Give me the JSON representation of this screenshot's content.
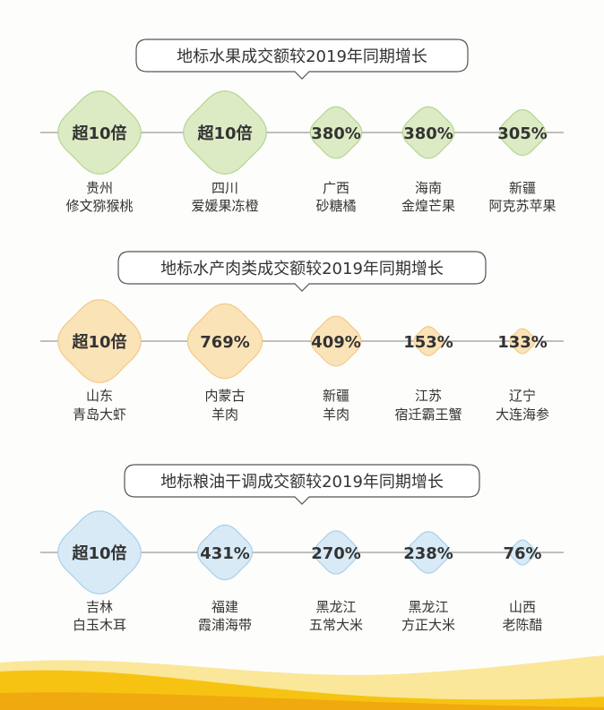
{
  "colors": {
    "fruit_fill": "#dcebc4",
    "fruit_stroke": "#b5d493",
    "aqua_fill": "#fbe3b8",
    "aqua_stroke": "#f2c987",
    "grain_fill": "#d8eaf6",
    "grain_stroke": "#a9cfe9",
    "line": "#9a9a9a",
    "text": "#333333",
    "banner": "#f7c313"
  },
  "chart_data": [
    {
      "type": "bubble",
      "title": "地标水果成交额较2019年同期增长",
      "items": [
        {
          "value_label": "超10倍",
          "region": "贵州",
          "product": "修文猕猴桃",
          "size": 1.0
        },
        {
          "value_label": "超10倍",
          "region": "四川",
          "product": "爱媛果冻橙",
          "size": 1.0
        },
        {
          "value_label": "380%",
          "region": "广西",
          "product": "砂糖橘",
          "size": 0.62
        },
        {
          "value_label": "380%",
          "region": "海南",
          "product": "金煌芒果",
          "size": 0.62
        },
        {
          "value_label": "305%",
          "region": "新疆",
          "product": "阿克苏苹果",
          "size": 0.55
        }
      ]
    },
    {
      "type": "bubble",
      "title": "地标水产肉类成交额较2019年同期增长",
      "items": [
        {
          "value_label": "超10倍",
          "region": "山东",
          "product": "青岛大虾",
          "size": 1.0
        },
        {
          "value_label": "769%",
          "region": "内蒙古",
          "product": "羊肉",
          "size": 0.9
        },
        {
          "value_label": "409%",
          "region": "新疆",
          "product": "羊肉",
          "size": 0.6
        },
        {
          "value_label": "153%",
          "region": "江苏",
          "product": "宿迁霸王蟹",
          "size": 0.35
        },
        {
          "value_label": "133%",
          "region": "辽宁",
          "product": "大连海参",
          "size": 0.3
        }
      ]
    },
    {
      "type": "bubble",
      "title": "地标粮油干调成交额较2019年同期增长",
      "items": [
        {
          "value_label": "超10倍",
          "region": "吉林",
          "product": "白玉木耳",
          "size": 1.0
        },
        {
          "value_label": "431%",
          "region": "福建",
          "product": "霞浦海带",
          "size": 0.66
        },
        {
          "value_label": "270%",
          "region": "黑龙江",
          "product": "五常大米",
          "size": 0.52
        },
        {
          "value_label": "238%",
          "region": "黑龙江",
          "product": "方正大米",
          "size": 0.5
        },
        {
          "value_label": "76%",
          "region": "山西",
          "product": "老陈醋",
          "size": 0.3
        }
      ]
    }
  ]
}
